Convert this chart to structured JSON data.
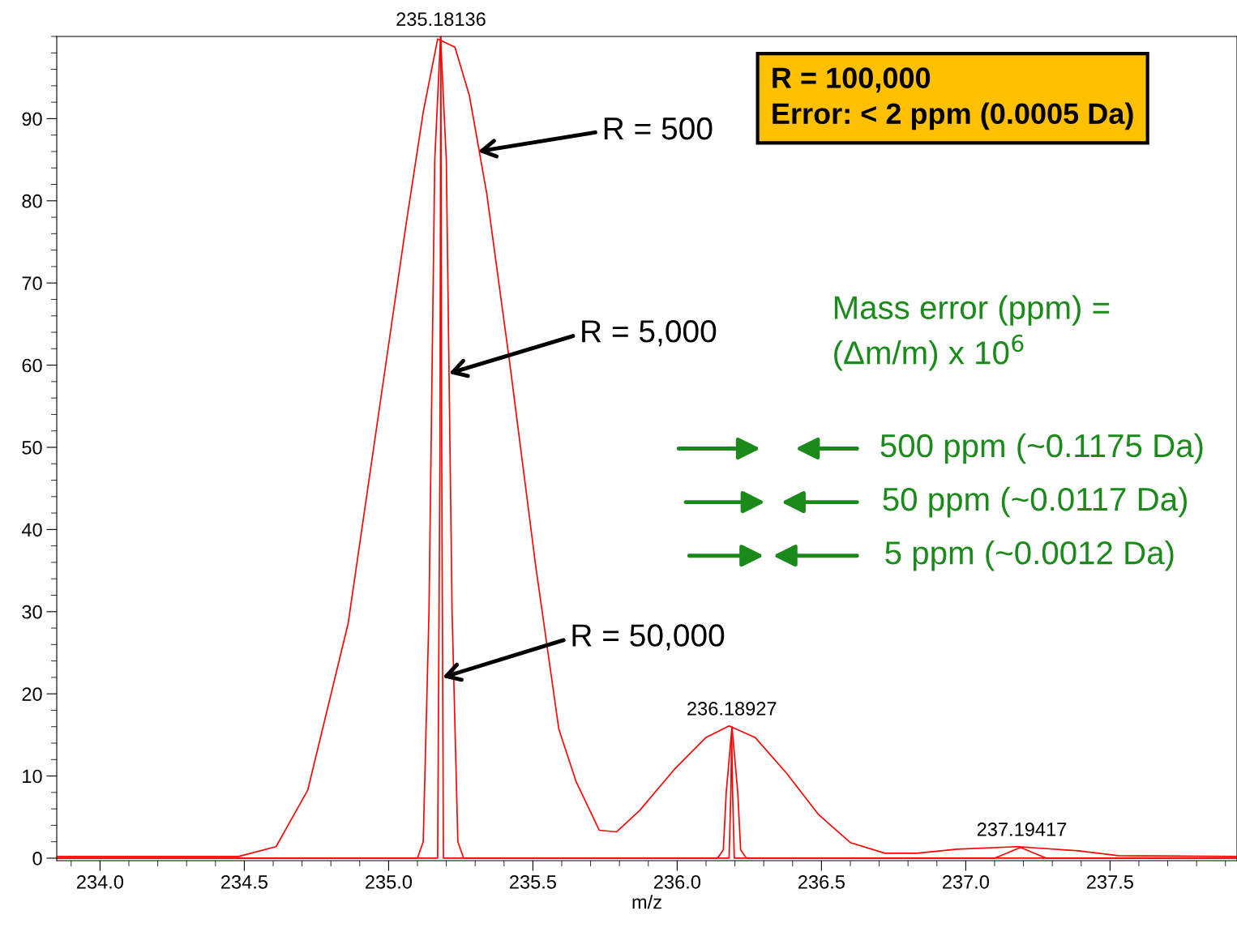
{
  "chart_data": {
    "type": "line",
    "xlabel": "m/z",
    "xlim": [
      233.85,
      237.94
    ],
    "ylim": [
      -0.3,
      100
    ],
    "xticks": [
      {
        "value": 234.0,
        "label": "234.0"
      },
      {
        "value": 234.5,
        "label": "234.5"
      },
      {
        "value": 235.0,
        "label": "235.0"
      },
      {
        "value": 235.5,
        "label": "235.5"
      },
      {
        "value": 236.0,
        "label": "236.0"
      },
      {
        "value": 236.5,
        "label": "236.5"
      },
      {
        "value": 237.0,
        "label": "237.0"
      },
      {
        "value": 237.5,
        "label": "237.5"
      }
    ],
    "yticks": [
      0,
      10,
      20,
      30,
      40,
      50,
      60,
      70,
      80,
      90
    ],
    "grid": false,
    "legend": false,
    "marker": "none",
    "line_style": "solid",
    "series": [
      {
        "color": "#ff0000",
        "x": [
          233.85,
          234.48,
          234.61,
          234.72,
          234.86,
          234.97,
          235.06,
          235.12,
          235.17,
          235.23,
          235.28,
          235.34,
          235.42,
          235.51,
          235.59,
          235.65,
          235.73,
          235.79,
          235.87,
          235.99,
          236.1,
          236.18,
          236.27,
          236.38,
          236.49,
          236.6,
          236.72,
          236.83,
          236.97,
          237.18,
          237.39,
          237.53,
          237.94
        ],
        "values": [
          0.2,
          0.2,
          1.4,
          8.3,
          28.6,
          55.2,
          77,
          90.8,
          99.7,
          98.7,
          92.8,
          80.9,
          60.2,
          35.5,
          15.7,
          9.3,
          3.4,
          3.2,
          5.8,
          10.8,
          14.7,
          16.1,
          14.7,
          10.3,
          5.3,
          1.9,
          0.6,
          0.6,
          1.1,
          1.4,
          0.9,
          0.3,
          0.2
        ]
      },
      {
        "color": "#ff0000",
        "x": [
          233.85,
          235.1,
          235.12,
          235.14,
          235.16,
          235.18,
          235.2,
          235.22,
          235.24,
          235.26,
          236.14,
          236.16,
          236.17,
          236.19,
          236.21,
          236.22,
          236.24,
          237.1,
          237.19,
          237.28,
          237.94
        ],
        "values": [
          0,
          0,
          2,
          30,
          85,
          100,
          85,
          30,
          2,
          0,
          0,
          1,
          8,
          16,
          8,
          1,
          0,
          0,
          1.3,
          0,
          0
        ]
      },
      {
        "color": "#ff0000",
        "x": [
          233.85,
          235.17,
          235.178,
          235.181,
          235.184,
          235.19,
          236.18,
          236.186,
          236.189,
          236.192,
          236.198,
          237.94
        ],
        "values": [
          0,
          0,
          50,
          100,
          50,
          0,
          0,
          8,
          15,
          8,
          0,
          0
        ]
      }
    ],
    "annotations": [
      {
        "text": "235.18136",
        "x": 235.18136,
        "y": 100
      },
      {
        "text": "236.18927",
        "x": 236.18927,
        "y": 16.1
      },
      {
        "text": "237.19417",
        "x": 237.19417,
        "y": 1.4
      },
      {
        "text": "R = 500",
        "x": 235.31,
        "y": 86
      },
      {
        "text": "R = 5,000",
        "x": 235.209,
        "y": 59
      },
      {
        "text": "R = 50,000",
        "x": 235.187,
        "y": 22
      },
      "R = 100,000\nError: < 2 ppm (0.0005 Da)",
      "Mass error (ppm) =\n(Δm/m) x 10$^{6}$",
      "500 ppm (~0.1175 Da)",
      "50 ppm (~0.0117 Da)",
      "5 ppm (~0.0012 Da)"
    ]
  }
}
